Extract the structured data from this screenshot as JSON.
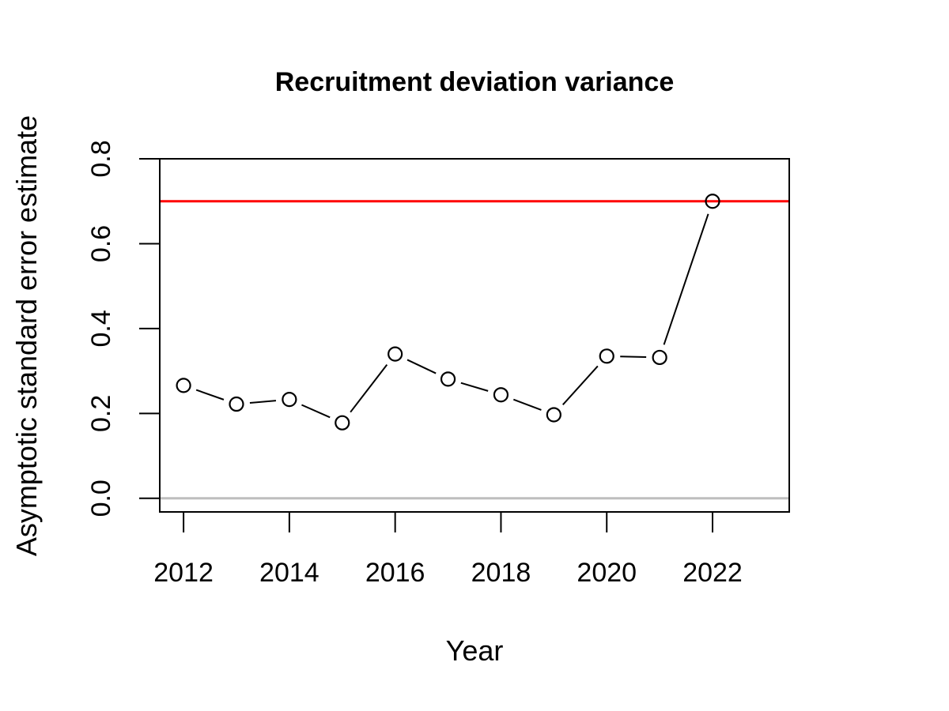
{
  "chart_data": {
    "type": "line",
    "title": "Recruitment deviation variance",
    "xlabel": "Year",
    "ylabel": "Asymptotic standard error estimate",
    "xlim": [
      2011.55,
      2023.45
    ],
    "ylim": [
      -0.032,
      0.8
    ],
    "xticks": [
      2012,
      2014,
      2016,
      2018,
      2020,
      2022
    ],
    "yticks": [
      0.0,
      0.2,
      0.4,
      0.6,
      0.8
    ],
    "ytick_labels": [
      "0.0",
      "0.2",
      "0.4",
      "0.6",
      "0.8"
    ],
    "grid": false,
    "series": [
      {
        "x": [
          2012,
          2013,
          2014,
          2015,
          2016,
          2017,
          2018,
          2019,
          2020,
          2021,
          2022
        ],
        "values": [
          0.266,
          0.222,
          0.233,
          0.178,
          0.34,
          0.281,
          0.244,
          0.197,
          0.335,
          0.332,
          0.7
        ],
        "style": "points-with-gapped-lines",
        "color": "#000000"
      }
    ],
    "reference_lines": [
      {
        "y": 0.7,
        "color": "#ff0000"
      },
      {
        "y": 0.0,
        "color": "#bebebe"
      }
    ]
  }
}
